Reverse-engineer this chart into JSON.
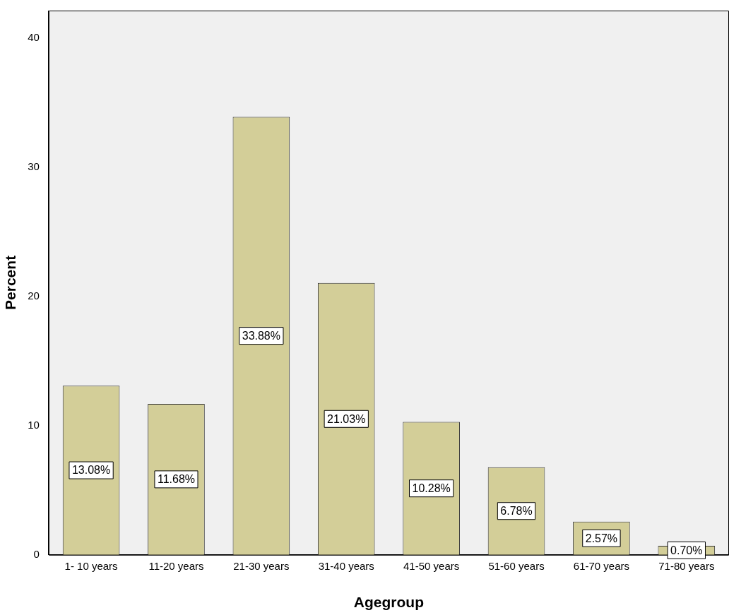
{
  "chart_data": {
    "type": "bar",
    "xlabel": "Agegroup",
    "ylabel": "Percent",
    "categories": [
      "1- 10 years",
      "11-20 years",
      "21-30 years",
      "31-40 years",
      "41-50 years",
      "51-60 years",
      "61-70 years",
      "71-80 years"
    ],
    "values": [
      13.08,
      11.68,
      33.88,
      21.03,
      10.28,
      6.78,
      2.57,
      0.7
    ],
    "value_labels": [
      "13.08%",
      "11.68%",
      "33.88%",
      "21.03%",
      "10.28%",
      "6.78%",
      "2.57%",
      "0.70%"
    ],
    "color": "#d3ce98",
    "ylim": [
      0,
      42.1
    ],
    "yticks": [
      0,
      10,
      20,
      30,
      40
    ],
    "grid": false,
    "legend": false
  }
}
